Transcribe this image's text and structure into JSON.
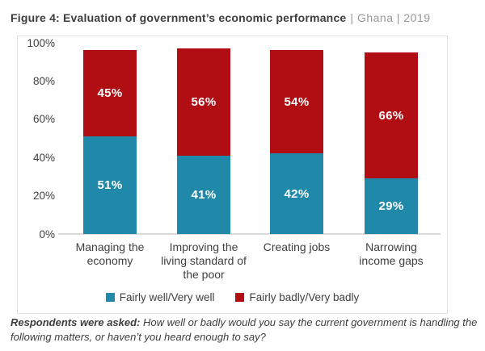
{
  "title": {
    "main": "Figure 4: Evaluation of government’s economic performance",
    "suffix": "| Ghana | 2019"
  },
  "chart_data": {
    "type": "bar",
    "stacked": true,
    "title": "Figure 4: Evaluation of government’s economic performance | Ghana | 2019",
    "categories": [
      "Managing the economy",
      "Improving the living standard of the poor",
      "Creating jobs",
      "Narrowing income gaps"
    ],
    "category_lines": [
      [
        "Managing the",
        "economy"
      ],
      [
        "Improving the",
        "living standard of",
        "the poor"
      ],
      [
        "Creating jobs"
      ],
      [
        "Narrowing",
        "income gaps"
      ]
    ],
    "series": [
      {
        "name": "Fairly well/Very well",
        "color": "#2088A9",
        "values": [
          51,
          41,
          42,
          29
        ]
      },
      {
        "name": "Fairly badly/Very badly",
        "color": "#B10E14",
        "values": [
          45,
          56,
          54,
          66
        ]
      }
    ],
    "value_suffix": "%",
    "y_ticks": [
      100,
      80,
      60,
      40,
      20,
      0
    ],
    "y_tick_suffix": "%",
    "ylim": [
      0,
      100
    ],
    "grid": false,
    "legend_position": "bottom",
    "axis_line_color": "#d9d9d9"
  },
  "footer": {
    "bold": "Respondents were asked:",
    "text": "How well or badly would you say the current government is handling the following matters, or haven’t you heard enough to say?"
  }
}
